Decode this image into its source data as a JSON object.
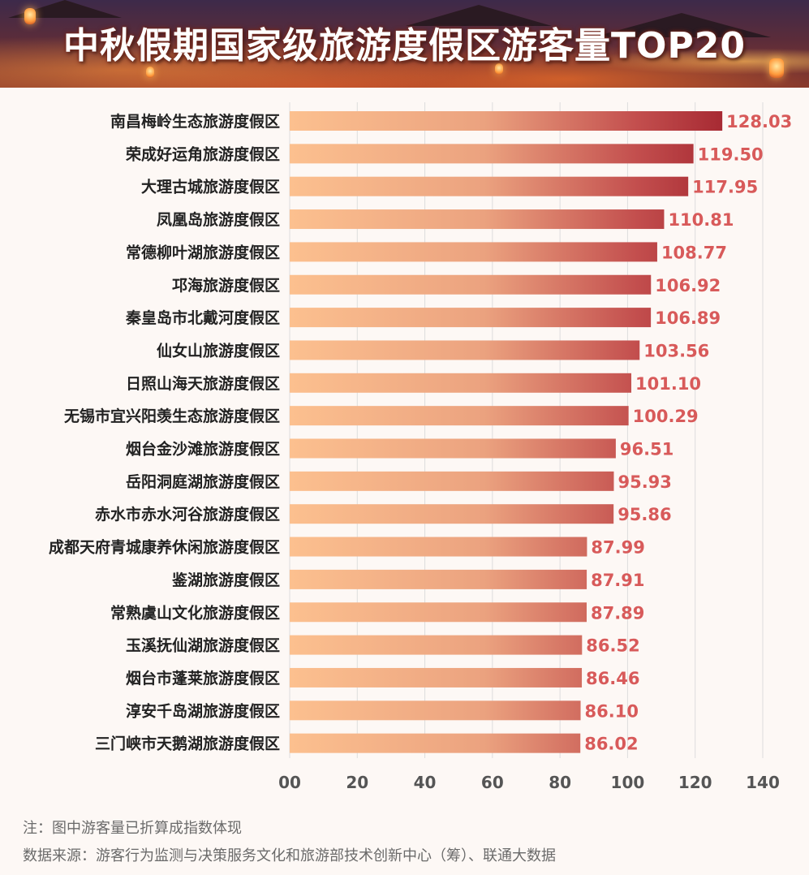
{
  "title": "中秋假期国家级旅游度假区游客量TOP20",
  "chart_data": {
    "type": "bar",
    "orientation": "horizontal",
    "title": "中秋假期国家级旅游度假区游客量TOP20",
    "categories": [
      "南昌梅岭生态旅游度假区",
      "荣成好运角旅游度假区",
      "大理古城旅游度假区",
      "凤凰岛旅游度假区",
      "常德柳叶湖旅游度假区",
      "邛海旅游度假区",
      "秦皇岛市北戴河度假区",
      "仙女山旅游度假区",
      "日照山海天旅游度假区",
      "无锡市宜兴阳羡生态旅游度假区",
      "烟台金沙滩旅游度假区",
      "岳阳洞庭湖旅游度假区",
      "赤水市赤水河谷旅游度假区",
      "成都天府青城康养休闲旅游度假区",
      "鉴湖旅游度假区",
      "常熟虞山文化旅游度假区",
      "玉溪抚仙湖旅游度假区",
      "烟台市蓬莱旅游度假区",
      "淳安千岛湖旅游度假区",
      "三门峡市天鹅湖旅游度假区"
    ],
    "values": [
      128.03,
      119.5,
      117.95,
      110.81,
      108.77,
      106.92,
      106.89,
      103.56,
      101.1,
      100.29,
      96.51,
      95.93,
      95.86,
      87.99,
      87.91,
      87.89,
      86.52,
      86.46,
      86.1,
      86.02
    ],
    "value_labels": [
      "128.03",
      "119.50",
      "117.95",
      "110.81",
      "108.77",
      "106.92",
      "106.89",
      "103.56",
      "101.10",
      "100.29",
      "96.51",
      "95.93",
      "95.86",
      "87.99",
      "87.91",
      "87.89",
      "86.52",
      "86.46",
      "86.10",
      "86.02"
    ],
    "xticks": [
      0,
      20,
      40,
      60,
      80,
      100,
      120,
      140
    ],
    "xtick_labels": [
      "00",
      "20",
      "40",
      "60",
      "80",
      "100",
      "120",
      "140"
    ],
    "xlim": [
      0,
      140
    ],
    "grid": true,
    "colors": {
      "bar_start": "#fcc08f",
      "bar_end": "#a72a33",
      "value_label": "#d85a5a",
      "grid": "#dddddd"
    }
  },
  "notes": {
    "note": "注：图中游客量已折算成指数体现",
    "source": "数据来源：游客行为监测与决策服务文化和旅游部技术创新中心（筹）、联通大数据"
  }
}
